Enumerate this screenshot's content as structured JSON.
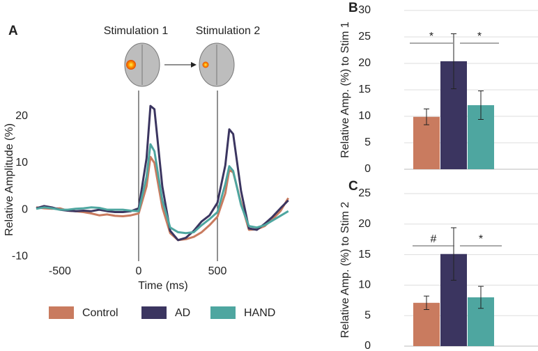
{
  "chart_data": [
    {
      "type": "line",
      "panel_label": "A",
      "annotations": [
        "Stimulation 1",
        "Stimulation 2"
      ],
      "x_label": "Time (ms)",
      "y_label": "Relative Amplitude (%)",
      "x": [
        -650,
        -600,
        -550,
        -500,
        -450,
        -400,
        -350,
        -300,
        -250,
        -200,
        -150,
        -100,
        -50,
        0,
        50,
        75,
        100,
        150,
        200,
        250,
        300,
        350,
        400,
        450,
        500,
        550,
        575,
        600,
        650,
        700,
        750,
        800,
        850,
        900,
        950
      ],
      "series": [
        {
          "name": "Control",
          "color": "#c97b5f",
          "values": [
            0.5,
            0.3,
            0.2,
            0.3,
            -0.2,
            -0.3,
            -0.5,
            -0.8,
            -1.2,
            -1,
            -1.3,
            -1.4,
            -1.2,
            -0.8,
            5,
            11.3,
            10,
            0.5,
            -5,
            -6.5,
            -6.3,
            -5.8,
            -4.8,
            -3.3,
            -1.5,
            3.5,
            8.5,
            8,
            1.5,
            -4.3,
            -4.2,
            -3.5,
            -2,
            -0.3,
            2.5
          ]
        },
        {
          "name": "AD",
          "color": "#3b3560",
          "values": [
            0.3,
            0.8,
            0.5,
            0,
            -0.2,
            -0.3,
            -0.2,
            -0.3,
            0,
            -0.3,
            -0.5,
            -0.5,
            -0.3,
            0.3,
            11,
            22.2,
            21.5,
            5,
            -4.5,
            -6.5,
            -6,
            -4.5,
            -2.5,
            -1.2,
            1.5,
            9.5,
            17.2,
            16.2,
            4,
            -4,
            -4.3,
            -3,
            -1.5,
            0.3,
            2
          ]
        },
        {
          "name": "HAND",
          "color": "#4ea6a0",
          "values": [
            0.2,
            0.5,
            0.3,
            0,
            0,
            0.2,
            0.3,
            0.5,
            0.4,
            0,
            0,
            0,
            -0.2,
            -0.3,
            7,
            14,
            12.5,
            2,
            -3.8,
            -4.8,
            -5,
            -4.8,
            -3.3,
            -2,
            -0.5,
            5.5,
            9.3,
            8.3,
            1,
            -3.5,
            -3.8,
            -3.3,
            -2.3,
            -1.3,
            -0.3
          ]
        }
      ],
      "stimuli": [
        0,
        500
      ],
      "xlim": [
        -650,
        960
      ],
      "ylim": [
        -11,
        24
      ],
      "xticks": [
        -500,
        0,
        500
      ],
      "yticks": [
        -10,
        0,
        10,
        20
      ]
    },
    {
      "type": "bar",
      "panel_label": "B",
      "y_label": "Relative Amp. (%) to Stim 1",
      "values": [
        9.9,
        20.4,
        12.1
      ],
      "errors": [
        1.5,
        5.2,
        2.7
      ],
      "colors": [
        "#c97b5f",
        "#3b3560",
        "#4ea6a0"
      ],
      "annotations": [
        "*",
        "*"
      ],
      "ylim": [
        0,
        30
      ],
      "yticks": [
        0,
        5,
        10,
        15,
        20,
        25,
        30
      ],
      "grid": true
    },
    {
      "type": "bar",
      "panel_label": "C",
      "y_label": "Relative Amp. (%) to Stim 2",
      "values": [
        7.1,
        15.1,
        8.0
      ],
      "errors": [
        1.1,
        4.3,
        1.8
      ],
      "colors": [
        "#c97b5f",
        "#3b3560",
        "#4ea6a0"
      ],
      "annotations": [
        "#",
        "*"
      ],
      "ylim": [
        0,
        25
      ],
      "yticks": [
        0,
        5,
        10,
        15,
        20,
        25
      ],
      "grid": true
    }
  ]
}
